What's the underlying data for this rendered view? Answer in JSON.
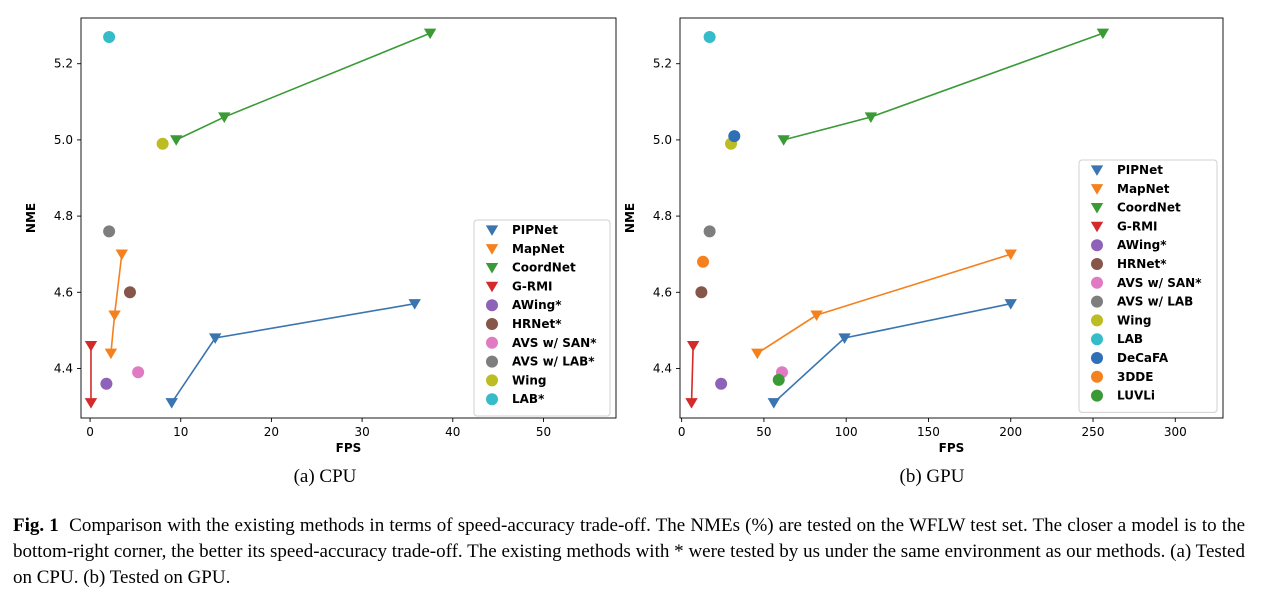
{
  "chart_data": [
    {
      "type": "scatter",
      "subtitle": "(a) CPU",
      "xlabel": "FPS",
      "ylabel": "NME",
      "xlim": [
        -1,
        58
      ],
      "ylim": [
        4.27,
        5.32
      ],
      "xticks": [
        0,
        10,
        20,
        30,
        40,
        50
      ],
      "yticks": [
        4.4,
        4.6,
        4.8,
        5.0,
        5.2
      ],
      "legend_position": "lower-right",
      "series": [
        {
          "name": "PIPNet",
          "color": "#3a75b0",
          "marker": "triangle-down",
          "line": true,
          "points": [
            [
              9,
              4.31
            ],
            [
              13.8,
              4.48
            ],
            [
              35.8,
              4.57
            ]
          ]
        },
        {
          "name": "MapNet",
          "color": "#f5801e",
          "marker": "triangle-down",
          "line": true,
          "points": [
            [
              2.3,
              4.44
            ],
            [
              2.7,
              4.54
            ],
            [
              3.5,
              4.7
            ]
          ]
        },
        {
          "name": "CoordNet",
          "color": "#3a9a36",
          "marker": "triangle-down",
          "line": true,
          "points": [
            [
              9.5,
              5.0
            ],
            [
              14.8,
              5.06
            ],
            [
              37.5,
              5.28
            ]
          ]
        },
        {
          "name": "G-RMI",
          "color": "#d42a2a",
          "marker": "triangle-down",
          "line": true,
          "points": [
            [
              0.1,
              4.31
            ],
            [
              0.1,
              4.46
            ]
          ]
        },
        {
          "name": "AWing*",
          "color": "#8e62b8",
          "marker": "circle",
          "line": false,
          "points": [
            [
              1.8,
              4.36
            ]
          ]
        },
        {
          "name": "HRNet*",
          "color": "#87564a",
          "marker": "circle",
          "line": false,
          "points": [
            [
              4.4,
              4.6
            ]
          ]
        },
        {
          "name": "AVS w/ SAN*",
          "color": "#e07ac3",
          "marker": "circle",
          "line": false,
          "points": [
            [
              5.3,
              4.39
            ]
          ]
        },
        {
          "name": "AVS w/ LAB*",
          "color": "#7e7e7e",
          "marker": "circle",
          "line": false,
          "points": [
            [
              2.1,
              4.76
            ]
          ]
        },
        {
          "name": "Wing",
          "color": "#bcbd22",
          "marker": "circle",
          "line": false,
          "points": [
            [
              8.0,
              4.99
            ]
          ]
        },
        {
          "name": "LAB*",
          "color": "#36bcc9",
          "marker": "circle",
          "line": false,
          "points": [
            [
              2.1,
              5.27
            ]
          ]
        }
      ]
    },
    {
      "type": "scatter",
      "subtitle": "(b) GPU",
      "xlabel": "FPS",
      "ylabel": "NME",
      "xlim": [
        -1,
        329
      ],
      "ylim": [
        4.27,
        5.32
      ],
      "xticks": [
        0,
        50,
        100,
        150,
        200,
        250,
        300
      ],
      "yticks": [
        4.4,
        4.6,
        4.8,
        5.0,
        5.2
      ],
      "legend_position": "right",
      "series": [
        {
          "name": "PIPNet",
          "color": "#3a75b0",
          "marker": "triangle-down",
          "line": true,
          "points": [
            [
              56,
              4.31
            ],
            [
              99,
              4.48
            ],
            [
              200,
              4.57
            ]
          ]
        },
        {
          "name": "MapNet",
          "color": "#f5801e",
          "marker": "triangle-down",
          "line": true,
          "points": [
            [
              46,
              4.44
            ],
            [
              82,
              4.54
            ],
            [
              200,
              4.7
            ]
          ]
        },
        {
          "name": "CoordNet",
          "color": "#3a9a36",
          "marker": "triangle-down",
          "line": true,
          "points": [
            [
              62,
              5.0
            ],
            [
              115,
              5.06
            ],
            [
              256,
              5.28
            ]
          ]
        },
        {
          "name": "G-RMI",
          "color": "#d42a2a",
          "marker": "triangle-down",
          "line": true,
          "points": [
            [
              6,
              4.31
            ],
            [
              7,
              4.46
            ]
          ]
        },
        {
          "name": "AWing*",
          "color": "#8e62b8",
          "marker": "circle",
          "line": false,
          "points": [
            [
              24,
              4.36
            ]
          ]
        },
        {
          "name": "HRNet*",
          "color": "#87564a",
          "marker": "circle",
          "line": false,
          "points": [
            [
              12,
              4.6
            ]
          ]
        },
        {
          "name": "AVS w/ SAN*",
          "color": "#e07ac3",
          "marker": "circle",
          "line": false,
          "points": [
            [
              61,
              4.39
            ]
          ]
        },
        {
          "name": "AVS w/ LAB",
          "color": "#7e7e7e",
          "marker": "circle",
          "line": false,
          "points": [
            [
              17,
              4.76
            ]
          ]
        },
        {
          "name": "Wing",
          "color": "#bcbd22",
          "marker": "circle",
          "line": false,
          "points": [
            [
              30,
              4.99
            ]
          ]
        },
        {
          "name": "LAB",
          "color": "#36bcc9",
          "marker": "circle",
          "line": false,
          "points": [
            [
              17,
              5.27
            ]
          ]
        },
        {
          "name": "DeCaFA",
          "color": "#2e6fb7",
          "marker": "circle",
          "line": false,
          "points": [
            [
              32,
              5.01
            ]
          ]
        },
        {
          "name": "3DDE",
          "color": "#f5801e",
          "marker": "circle",
          "line": false,
          "points": [
            [
              13,
              4.68
            ]
          ]
        },
        {
          "name": "LUVLi",
          "color": "#3a9a36",
          "marker": "circle",
          "line": false,
          "points": [
            [
              59,
              4.37
            ]
          ]
        }
      ]
    }
  ],
  "caption": {
    "label": "Fig. 1",
    "text": "Comparison with the existing methods in terms of speed-accuracy trade-off. The NMEs (%) are tested on the WFLW test set. The closer a model is to the bottom-right corner, the better its speed-accuracy trade-off. The existing methods with * were tested by us under the same environment as our methods. (a) Tested on CPU. (b) Tested on GPU."
  }
}
